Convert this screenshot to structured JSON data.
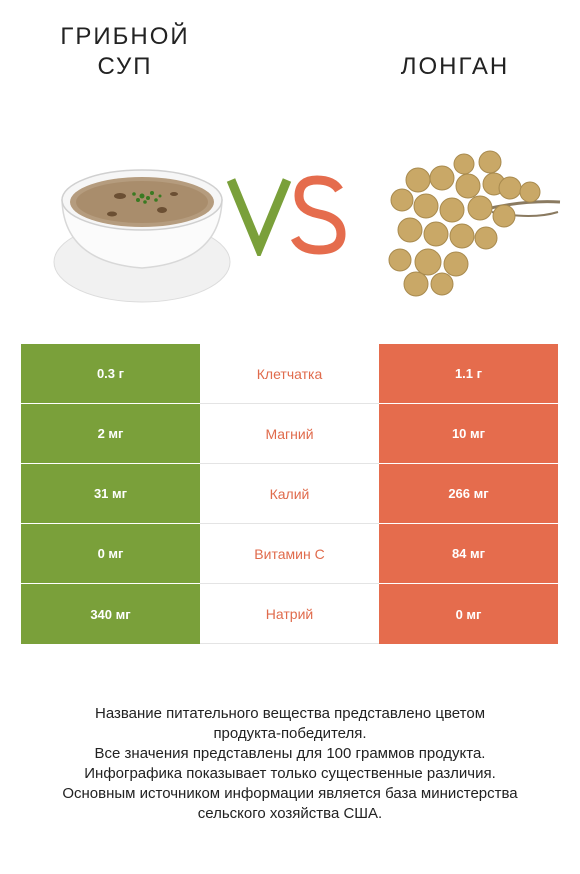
{
  "titles": {
    "left_line1": "ГРИБНОЙ",
    "left_line2": "СУП",
    "right": "ЛОНГАН"
  },
  "vs": {
    "v_color": "#7aa03a",
    "s_color": "#e56c4d"
  },
  "colors": {
    "left": "#7aa03a",
    "right": "#e56c4d",
    "label": "#e06b4c"
  },
  "rows": [
    {
      "left": "0.3 г",
      "label": "Клетчатка",
      "right": "1.1 г",
      "winner": "right"
    },
    {
      "left": "2 мг",
      "label": "Магний",
      "right": "10 мг",
      "winner": "right"
    },
    {
      "left": "31 мг",
      "label": "Калий",
      "right": "266 мг",
      "winner": "right"
    },
    {
      "left": "0 мг",
      "label": "Витамин C",
      "right": "84 мг",
      "winner": "right"
    },
    {
      "left": "340 мг",
      "label": "Натрий",
      "right": "0 мг",
      "winner": "left"
    }
  ],
  "footer": {
    "line1": "Название питательного вещества представлено цветом",
    "line2": "продукта-победителя.",
    "line3": "Все значения представлены для 100 граммов продукта.",
    "line4": "Инфографика показывает только существенные различия.",
    "line5": "Основным источником информации является база министерства",
    "line6": "сельского хозяйства США."
  }
}
